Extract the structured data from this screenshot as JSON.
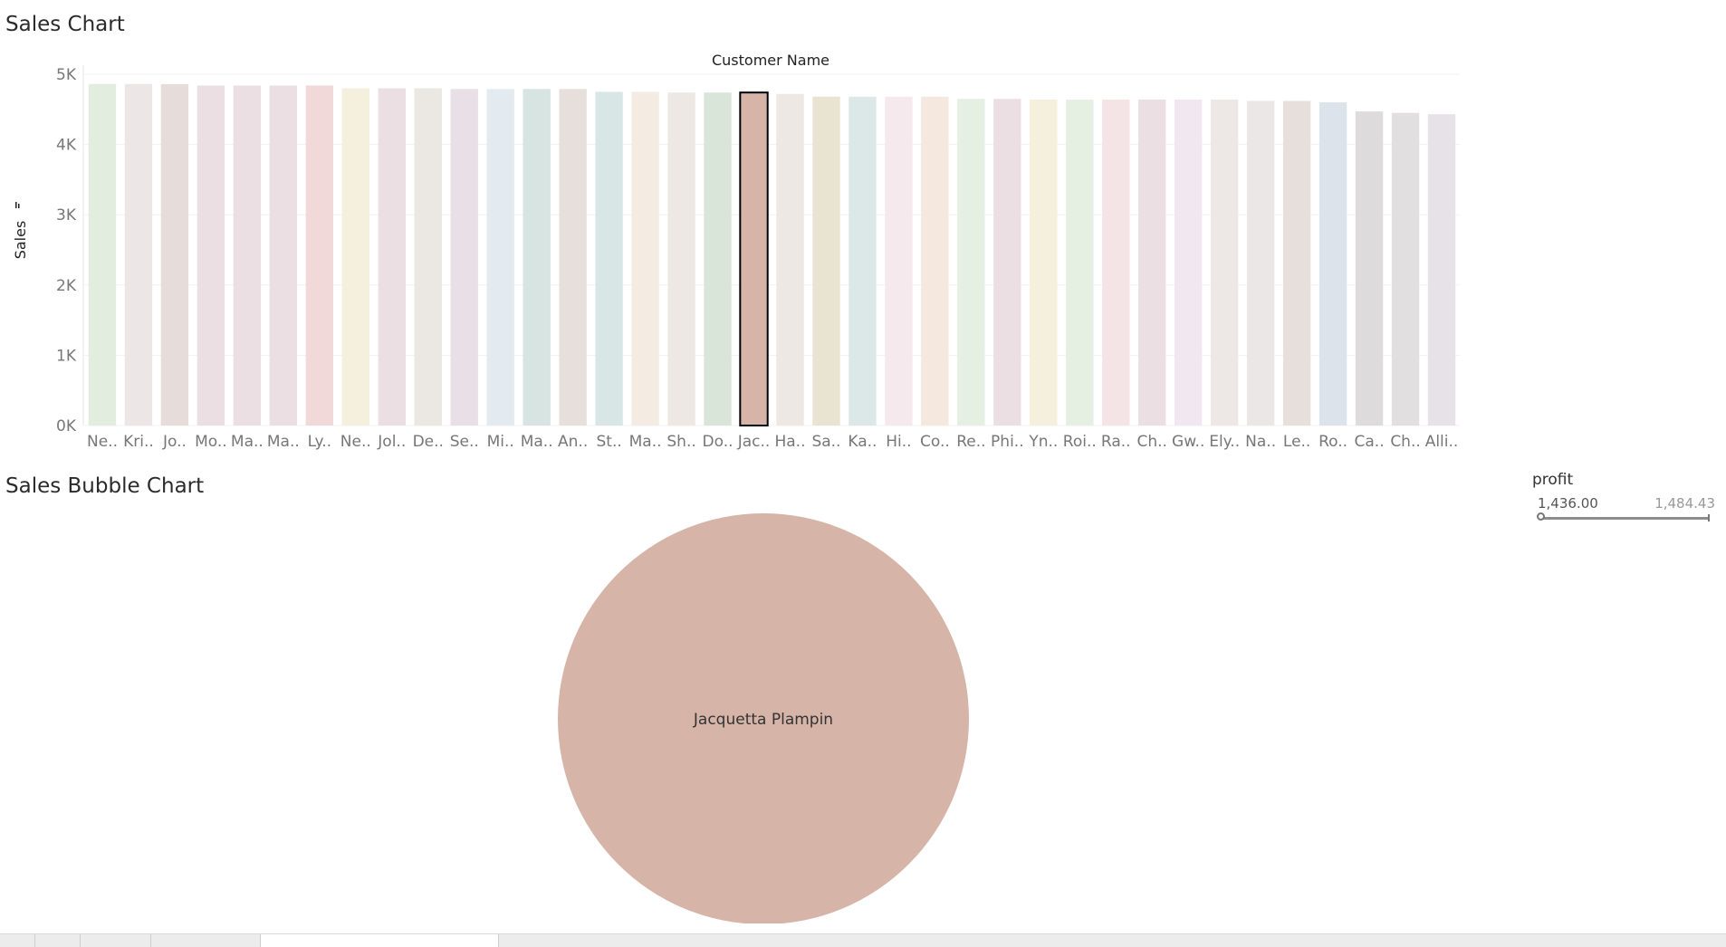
{
  "chart_titles": {
    "sales_chart": "Sales Chart",
    "bubble_chart": "Sales Bubble Chart"
  },
  "chart_data": [
    {
      "type": "bar",
      "title": "Sales Chart",
      "xlabel": "Customer Name",
      "ylabel": "Sales",
      "ylim": [
        0,
        5000
      ],
      "yticks": [
        0,
        1000,
        2000,
        3000,
        4000,
        5000
      ],
      "ytick_labels": [
        "0K",
        "1K",
        "2K",
        "3K",
        "4K",
        "5K"
      ],
      "categories": [
        "Ne..",
        "Kri..",
        "Jo..",
        "Mo..",
        "Ma..",
        "Ma..",
        "Ly..",
        "Ne..",
        "Jol..",
        "De..",
        "Se..",
        "Mi..",
        "Ma..",
        "An..",
        "St..",
        "Ma..",
        "Sh..",
        "Do..",
        "Jac..",
        "Ha..",
        "Sa..",
        "Ka..",
        "Hi..",
        "Co..",
        "Re..",
        "Phi..",
        "Yn..",
        "Roi..",
        "Ra..",
        "Ch..",
        "Gw..",
        "Ely..",
        "Na..",
        "Le..",
        "Ro..",
        "Ca..",
        "Ch..",
        "Alli.."
      ],
      "values": [
        4860,
        4860,
        4860,
        4840,
        4840,
        4840,
        4840,
        4800,
        4800,
        4800,
        4790,
        4790,
        4790,
        4790,
        4750,
        4750,
        4740,
        4740,
        4740,
        4720,
        4680,
        4680,
        4680,
        4680,
        4650,
        4650,
        4640,
        4640,
        4640,
        4640,
        4640,
        4640,
        4620,
        4620,
        4600,
        4470,
        4450,
        4430
      ],
      "colors": [
        "#e2ecdf",
        "#ece7e6",
        "#e6dcd9",
        "#ecdfe3",
        "#ecdfe3",
        "#ecdfe3",
        "#f1d9da",
        "#f5efdd",
        "#ecdfe3",
        "#ebe7e3",
        "#e9e0e7",
        "#e3ebf0",
        "#d7e4e2",
        "#e6dfdc",
        "#d8e6e6",
        "#f4ebe3",
        "#ede8e3",
        "#dae5da",
        "#d6b4a8",
        "#ede8e3",
        "#e9e4d1",
        "#dce8e8",
        "#f5e9ee",
        "#f4e8df",
        "#e5f0e2",
        "#ecdfe3",
        "#f5efdd",
        "#e5f0e2",
        "#f5e4e6",
        "#ecdfe3",
        "#f1e7f1",
        "#ede8e6",
        "#ebe7e6",
        "#e6dfdc",
        "#dde3ea",
        "#dddbdb",
        "#e1dfdf",
        "#e7e1e8"
      ],
      "selected_index": 18,
      "grid": true
    },
    {
      "type": "scatter",
      "title": "Sales Bubble Chart",
      "points": [
        {
          "label": "Jacquetta Plampin",
          "color": "#d6b4a8"
        }
      ]
    }
  ],
  "filter": {
    "title": "profit",
    "min_label": "1,436.00",
    "max_label": "1,484.43",
    "range": [
      1436.0,
      1484.43
    ],
    "selected_min": 1436.0
  }
}
